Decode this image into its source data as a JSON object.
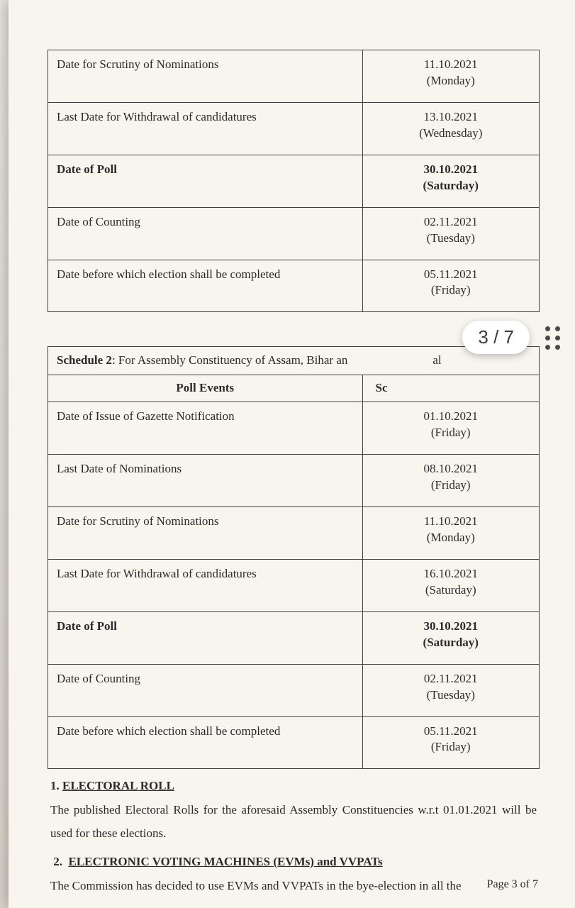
{
  "table1": {
    "rows": [
      {
        "event": "Date for Scrutiny of Nominations",
        "date": "11.10.2021",
        "day": "(Monday)",
        "bold": false
      },
      {
        "event": "Last Date for Withdrawal of candidatures",
        "date": "13.10.2021",
        "day": "(Wednesday)",
        "bold": false
      },
      {
        "event": "Date of Poll",
        "date": "30.10.2021",
        "day": "(Saturday)",
        "bold": true
      },
      {
        "event": "Date of Counting",
        "date": "02.11.2021",
        "day": "(Tuesday)",
        "bold": false
      },
      {
        "event": "Date before which election shall be completed",
        "date": "05.11.2021",
        "day": "(Friday)",
        "bold": false
      }
    ]
  },
  "table2": {
    "title_prefix": "Schedule 2",
    "title_rest": ": For Assembly Constituency of Assam, Bihar an",
    "title_suffix_visible": "al",
    "col_event": "Poll Events",
    "col_date": "Sc",
    "rows": [
      {
        "event": "Date of Issue of Gazette Notification",
        "date": "01.10.2021",
        "day": "(Friday)",
        "bold": false
      },
      {
        "event": "Last Date of Nominations",
        "date": "08.10.2021",
        "day": "(Friday)",
        "bold": false
      },
      {
        "event": "Date for Scrutiny of Nominations",
        "date": "11.10.2021",
        "day": "(Monday)",
        "bold": false
      },
      {
        "event": "Last Date for Withdrawal of candidatures",
        "date": "16.10.2021",
        "day": "(Saturday)",
        "bold": false
      },
      {
        "event": "Date of Poll",
        "date": "30.10.2021",
        "day": "(Saturday)",
        "bold": true
      },
      {
        "event": "Date of Counting",
        "date": "02.11.2021",
        "day": "(Tuesday)",
        "bold": false
      },
      {
        "event": "Date before which election shall be completed",
        "date": "05.11.2021",
        "day": "(Friday)",
        "bold": false
      }
    ]
  },
  "section1": {
    "num": "1.",
    "title": "ELECTORAL ROLL",
    "body": "The published Electoral Rolls for the aforesaid Assembly Constituencies w.r.t 01.01.2021 will be used for these elections."
  },
  "section2": {
    "num": "2.",
    "title": "ELECTRONIC VOTING MACHINES (EVMs) and VVPATs",
    "body": "The Commission has decided to use EVMs and VVPATs in the bye-election in all the"
  },
  "footer": "Page 3 of 7",
  "page_pill": "3 / 7"
}
